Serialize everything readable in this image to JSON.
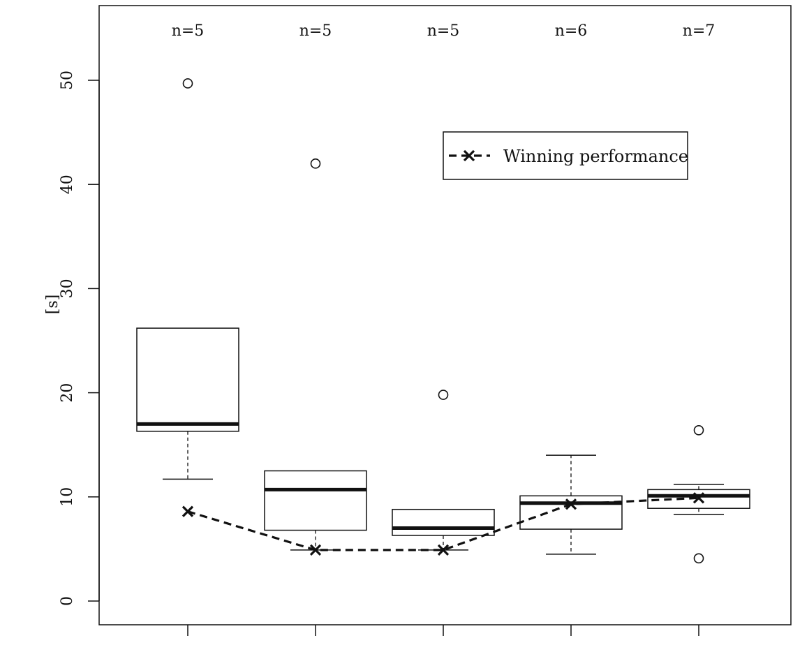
{
  "chart_data": {
    "type": "box",
    "ylabel": "[s]",
    "ylim": [
      0,
      50
    ],
    "yticks": [
      "0",
      "10",
      "20",
      "30",
      "40",
      "50"
    ],
    "ytick_values": [
      0,
      10,
      20,
      30,
      40,
      50
    ],
    "grid": false,
    "legend": {
      "position": "top-right",
      "entries": [
        {
          "label": "Winning performance",
          "style": "dashed line with x marker"
        }
      ]
    },
    "groups": [
      {
        "n_label": "n=5",
        "whisker_low": 11.7,
        "q1": 16.3,
        "median": 17.0,
        "q3": 26.2,
        "whisker_high": 26.2,
        "outliers": [
          49.7
        ],
        "winning": 8.6
      },
      {
        "n_label": "n=5",
        "whisker_low": 4.9,
        "q1": 6.8,
        "median": 10.7,
        "q3": 12.5,
        "whisker_high": 12.5,
        "outliers": [
          42.0
        ],
        "winning": 4.9
      },
      {
        "n_label": "n=5",
        "whisker_low": 4.9,
        "q1": 6.3,
        "median": 7.0,
        "q3": 8.8,
        "whisker_high": 8.8,
        "outliers": [
          19.8
        ],
        "winning": 4.9
      },
      {
        "n_label": "n=6",
        "whisker_low": 4.5,
        "q1": 6.9,
        "median": 9.4,
        "q3": 10.1,
        "whisker_high": 14.0,
        "outliers": [],
        "winning": 9.3
      },
      {
        "n_label": "n=7",
        "whisker_low": 8.3,
        "q1": 8.9,
        "median": 10.1,
        "q3": 10.7,
        "whisker_high": 11.2,
        "outliers": [
          16.4,
          4.1
        ],
        "winning": 9.9
      }
    ]
  }
}
